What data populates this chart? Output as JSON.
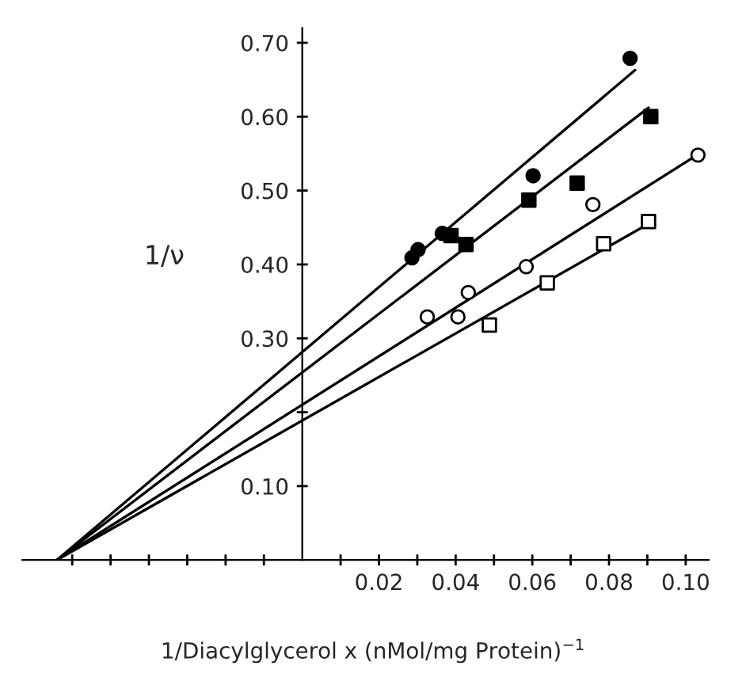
{
  "chart_data": {
    "type": "scatter",
    "xlabel": "1/Diacylglycerol x (nMol/mg Protein)$^{−1}$",
    "ylabel": "1/ν",
    "xlim": [
      -0.073,
      0.106
    ],
    "ylim": [
      0,
      0.72
    ],
    "xticks": [
      {
        "value": -0.06,
        "label": null
      },
      {
        "value": -0.05,
        "label": null
      },
      {
        "value": -0.04,
        "label": null
      },
      {
        "value": -0.03,
        "label": null
      },
      {
        "value": -0.02,
        "label": null
      },
      {
        "value": -0.01,
        "label": null
      },
      {
        "value": 0.01,
        "label": null
      },
      {
        "value": 0.02,
        "label": "0.02"
      },
      {
        "value": 0.03,
        "label": null
      },
      {
        "value": 0.04,
        "label": "0.04"
      },
      {
        "value": 0.05,
        "label": null
      },
      {
        "value": 0.06,
        "label": "0.06"
      },
      {
        "value": 0.07,
        "label": null
      },
      {
        "value": 0.08,
        "label": "0.08"
      },
      {
        "value": 0.09,
        "label": null
      },
      {
        "value": 0.1,
        "label": "0.10"
      }
    ],
    "yticks": [
      {
        "value": 0.1,
        "label": "0.10"
      },
      {
        "value": 0.2,
        "label": null
      },
      {
        "value": 0.3,
        "label": "0.30"
      },
      {
        "value": 0.4,
        "label": "0.40"
      },
      {
        "value": 0.5,
        "label": "0.50"
      },
      {
        "value": 0.6,
        "label": "0.60"
      },
      {
        "value": 0.7,
        "label": "0.70"
      }
    ],
    "grid": false,
    "legend": false,
    "series": [
      {
        "marker": "circle",
        "color": "#000000",
        "x": [
          0.0286,
          0.0302,
          0.0365,
          0.0602,
          0.0855
        ],
        "values": [
          0.409,
          0.42,
          0.442,
          0.52,
          0.679
        ]
      },
      {
        "marker": "square",
        "color": "#000000",
        "x": [
          0.0388,
          0.0427,
          0.0591,
          0.0717,
          0.0909
        ],
        "values": [
          0.439,
          0.427,
          0.487,
          0.51,
          0.6
        ]
      },
      {
        "marker": "circle",
        "color": "#ffffff",
        "x": [
          0.0326,
          0.0406,
          0.0433,
          0.0584,
          0.0758,
          0.1032
        ],
        "values": [
          0.329,
          0.329,
          0.362,
          0.397,
          0.481,
          0.548
        ]
      },
      {
        "marker": "square",
        "color": "#ffffff",
        "x": [
          0.0488,
          0.0639,
          0.0786,
          0.0903
        ],
        "values": [
          0.318,
          0.375,
          0.428,
          0.458
        ]
      },
      {
        "type": "line",
        "marker": "none",
        "line_style": "solid",
        "color": "#000000",
        "x": [
          -0.064,
          0.0868
        ],
        "values": [
          0,
          0.663
        ]
      },
      {
        "type": "line",
        "marker": "none",
        "line_style": "solid",
        "color": "#000000",
        "x": [
          -0.064,
          0.0903
        ],
        "values": [
          0,
          0.612
        ]
      },
      {
        "type": "line",
        "marker": "none",
        "line_style": "solid",
        "color": "#000000",
        "x": [
          -0.064,
          0.1026
        ],
        "values": [
          0,
          0.547
        ]
      },
      {
        "type": "line",
        "marker": "none",
        "line_style": "solid",
        "color": "#000000",
        "x": [
          -0.064,
          0.0903
        ],
        "values": [
          0,
          0.455
        ]
      }
    ]
  }
}
